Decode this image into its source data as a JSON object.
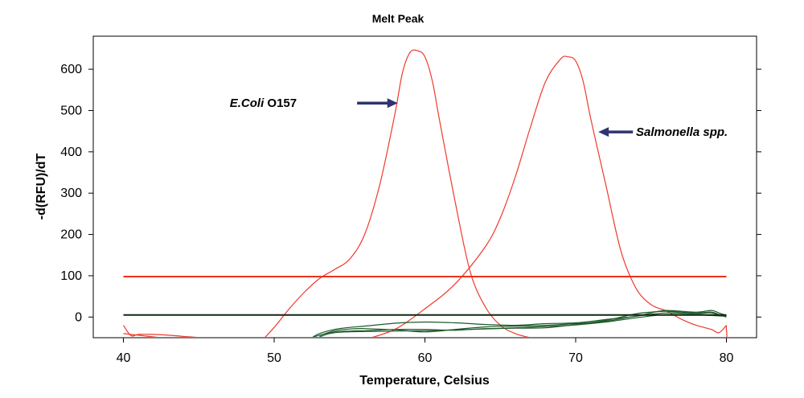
{
  "chart_data": {
    "type": "line",
    "title": "Melt Peak",
    "xlabel": "Temperature, Celsius",
    "ylabel": "-d(RFU)/dT",
    "xlim": [
      38,
      82
    ],
    "ylim": [
      -50,
      680
    ],
    "xticks": [
      "40",
      "50",
      "60",
      "70",
      "80"
    ],
    "yticks": [
      "0",
      "100",
      "200",
      "300",
      "400",
      "500",
      "600"
    ],
    "grid": false,
    "colors": {
      "peak": "#f03a2c",
      "threshold_red": "#e8321c",
      "threshold_dark": "#0e2a10",
      "green_traces": "#1e5a2a",
      "arrow": "#2f3370"
    },
    "thresholds": [
      {
        "y": 98,
        "color": "#e8321c"
      },
      {
        "y": 5,
        "color": "#0e2a10"
      }
    ],
    "series": [
      {
        "x": [
          40,
          40.5,
          41,
          42,
          43,
          44,
          45,
          46,
          48,
          49,
          50,
          51,
          52,
          53,
          54,
          55,
          56,
          57,
          58,
          58.5,
          59,
          59.5,
          60,
          60.5,
          61,
          62,
          63,
          64,
          65,
          66,
          67,
          68,
          70,
          75,
          79.5,
          80
        ],
        "y": [
          -20,
          -45,
          -42,
          -42,
          -44,
          -47,
          -50,
          -60,
          -80,
          -62,
          -25,
          20,
          60,
          93,
          115,
          140,
          200,
          320,
          490,
          590,
          640,
          645,
          630,
          570,
          470,
          280,
          110,
          25,
          -20,
          -40,
          -50,
          -58,
          -70,
          -80,
          -75,
          -20
        ],
        "color": "#f03a2c"
      },
      {
        "x": [
          40,
          45,
          50,
          52,
          54,
          55,
          56,
          58,
          60,
          62,
          64,
          65,
          66,
          67,
          68,
          69,
          69.5,
          70,
          70.5,
          71,
          72,
          73,
          74,
          75,
          76,
          77,
          78,
          79,
          79.5,
          80
        ],
        "y": [
          -40,
          -60,
          -80,
          -110,
          -90,
          -70,
          -55,
          -30,
          20,
          80,
          170,
          240,
          340,
          460,
          570,
          625,
          630,
          620,
          570,
          480,
          320,
          160,
          70,
          30,
          15,
          -5,
          -20,
          -30,
          -38,
          -20
        ],
        "color": "#f03a2c"
      },
      {
        "x": [
          52.5,
          53,
          54,
          55,
          56,
          58,
          60,
          62,
          64,
          66,
          68,
          70,
          72,
          74,
          75,
          76,
          78,
          79,
          79.5,
          80
        ],
        "y": [
          -50,
          -44,
          -36,
          -34,
          -33,
          -30,
          -30,
          -32,
          -28,
          -27,
          -26,
          -18,
          -8,
          8,
          12,
          14,
          10,
          12,
          6,
          3
        ],
        "color": "#1e5a2a"
      },
      {
        "x": [
          52.5,
          53,
          54,
          55,
          56,
          58,
          60,
          62,
          64,
          66,
          68,
          70,
          72,
          74,
          75,
          76,
          78,
          79,
          79.5,
          80
        ],
        "y": [
          -50,
          -40,
          -30,
          -25,
          -22,
          -15,
          -12,
          -14,
          -18,
          -20,
          -16,
          -14,
          -6,
          2,
          10,
          16,
          12,
          16,
          10,
          4
        ],
        "color": "#1e5a2a"
      },
      {
        "x": [
          53,
          54,
          55,
          56,
          58,
          60,
          62,
          64,
          66,
          68,
          70,
          72,
          74,
          76,
          78,
          79,
          80
        ],
        "y": [
          -45,
          -33,
          -29,
          -28,
          -31,
          -36,
          -30,
          -24,
          -22,
          -20,
          -16,
          -10,
          2,
          10,
          8,
          10,
          0
        ],
        "color": "#1e5a2a"
      },
      {
        "x": [
          53,
          54,
          56,
          58,
          60,
          62,
          64,
          66,
          68,
          70,
          72,
          74,
          76,
          78,
          80
        ],
        "y": [
          -48,
          -38,
          -35,
          -34,
          -33,
          -31,
          -29,
          -26,
          -23,
          -19,
          -12,
          -2,
          6,
          5,
          2
        ],
        "color": "#1e5a2a"
      }
    ],
    "annotations": [
      {
        "italic": "E.Coli",
        "rest": " O157",
        "arrow_from": [
          55.5,
          518
        ],
        "arrow_to": [
          58.2,
          518
        ],
        "text_at": [
          51.5,
          518
        ],
        "anchor": "end"
      },
      {
        "italic": "Salmonella spp.",
        "rest": "",
        "arrow_from": [
          73.8,
          448
        ],
        "arrow_to": [
          71.5,
          448
        ],
        "text_at": [
          74.0,
          448
        ],
        "anchor": "start"
      }
    ]
  }
}
